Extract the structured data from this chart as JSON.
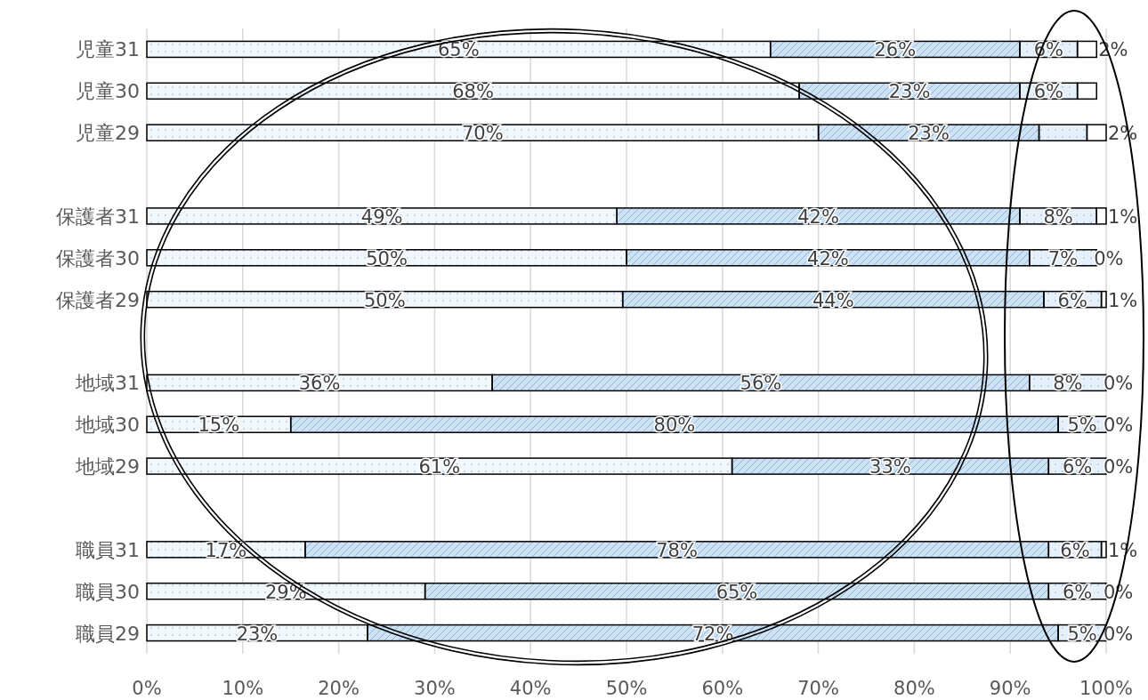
{
  "chart_data": {
    "type": "bar",
    "orientation": "horizontal",
    "stacked": true,
    "grid": "x",
    "categories": [
      "児童31",
      "児童30",
      "児童29",
      null,
      "保護者31",
      "保護者30",
      "保護者29",
      null,
      "地域31",
      "地域30",
      "地域29",
      null,
      "職員31",
      "職員30",
      "職員29"
    ],
    "xlim": [
      0,
      100
    ],
    "xticks": [
      {
        "value": 0,
        "label": "0%"
      },
      {
        "value": 10,
        "label": "10%"
      },
      {
        "value": 20,
        "label": "20%"
      },
      {
        "value": 30,
        "label": "30%"
      },
      {
        "value": 40,
        "label": "40%"
      },
      {
        "value": 50,
        "label": "50%"
      },
      {
        "value": 60,
        "label": "60%"
      },
      {
        "value": 70,
        "label": "70%"
      },
      {
        "value": 80,
        "label": "80%"
      },
      {
        "value": 90,
        "label": "90%"
      },
      {
        "value": 100,
        "label": "100%"
      }
    ],
    "series": [
      {
        "color": "#f2f7fc",
        "values": [
          65,
          68,
          70,
          null,
          49,
          50,
          49.6,
          null,
          36,
          15,
          61,
          null,
          16.5,
          29,
          23
        ],
        "value_labels": [
          "65%",
          "68%",
          "70%",
          null,
          "49%",
          "50%",
          "50%",
          null,
          "36%",
          "15%",
          "61%",
          null,
          "17%",
          "29%",
          "23%"
        ]
      },
      {
        "color": "#cfe2f3",
        "values": [
          26,
          23,
          23,
          null,
          42,
          42,
          43.9,
          null,
          56,
          80,
          33,
          null,
          77.5,
          65,
          72
        ],
        "value_labels": [
          "26%",
          "23%",
          "23%",
          null,
          "42%",
          "42%",
          "44%",
          null,
          "56%",
          "80%",
          "33%",
          null,
          "78%",
          "65%",
          "72%"
        ]
      },
      {
        "color": "#e6f0fa",
        "values": [
          6,
          6,
          5,
          null,
          8,
          7,
          6,
          null,
          8,
          5,
          6,
          null,
          5.5,
          6,
          5
        ],
        "value_labels": [
          "6%",
          "6%",
          null,
          null,
          "8%",
          "7%",
          "6%",
          null,
          "8%",
          "5%",
          "6%",
          null,
          "6%",
          "6%",
          "5%"
        ]
      },
      {
        "color": "#ffffff",
        "values": [
          2,
          2,
          2,
          null,
          1,
          0,
          0.5,
          null,
          0,
          0,
          0,
          null,
          0.5,
          0,
          0
        ],
        "value_labels": [
          "2%",
          null,
          "2%",
          null,
          "1%",
          "0%",
          "1%",
          null,
          "0%",
          "0%",
          "0%",
          null,
          "1%",
          "0%",
          "0%"
        ]
      }
    ]
  }
}
